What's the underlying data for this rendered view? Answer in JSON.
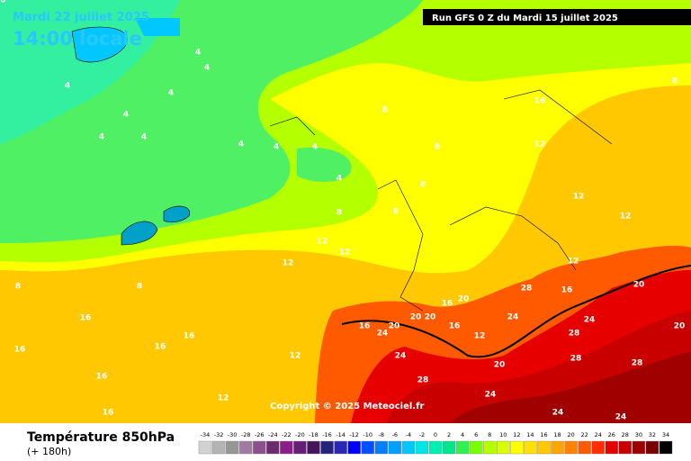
{
  "header": {
    "date": "Mardi 22 juillet 2025",
    "time": "14:00 locale",
    "run": "Run GFS 0 Z du Mardi 15 juillet 2025"
  },
  "copyright": "Copyright © 2025 Meteociel.fr",
  "footer": {
    "title": "Température 850hPa",
    "subtitle": "(+ 180h)"
  },
  "scale": {
    "values": [
      -34,
      -32,
      -30,
      -28,
      -26,
      -24,
      -22,
      -20,
      -18,
      -16,
      -14,
      -12,
      -10,
      -8,
      -6,
      -4,
      -2,
      0,
      2,
      4,
      6,
      8,
      10,
      12,
      14,
      16,
      18,
      20,
      22,
      24,
      26,
      28,
      30,
      32,
      34
    ],
    "colors": [
      "#d2d2d2",
      "#b4b4b4",
      "#969696",
      "#a07aa0",
      "#8c508c",
      "#6e2a6e",
      "#8c1e8c",
      "#641e78",
      "#46145a",
      "#23237d",
      "#2828b4",
      "#0000ff",
      "#0050ff",
      "#0080ff",
      "#00a0ff",
      "#00c8ff",
      "#00e6e6",
      "#00f0b4",
      "#00e68c",
      "#32f050",
      "#78ff00",
      "#b4ff00",
      "#d7ff00",
      "#ffff00",
      "#ffe100",
      "#ffc800",
      "#ffa500",
      "#ff8200",
      "#ff5a00",
      "#ff2d00",
      "#e60000",
      "#c80000",
      "#a00000",
      "#780000",
      "#000000"
    ]
  },
  "contour_labels": [
    4,
    4,
    4,
    4,
    4,
    4,
    4,
    4,
    4,
    4,
    4,
    8,
    8,
    8,
    8,
    8,
    8,
    8,
    8,
    12,
    12,
    12,
    12,
    12,
    12,
    12,
    12,
    16,
    16,
    16,
    16,
    16,
    16,
    16,
    16,
    16,
    16,
    20,
    20,
    20,
    20,
    20,
    20,
    20,
    24,
    24,
    24,
    24,
    24,
    24,
    24,
    28,
    28,
    28,
    28,
    28,
    12,
    12,
    16,
    16
  ]
}
